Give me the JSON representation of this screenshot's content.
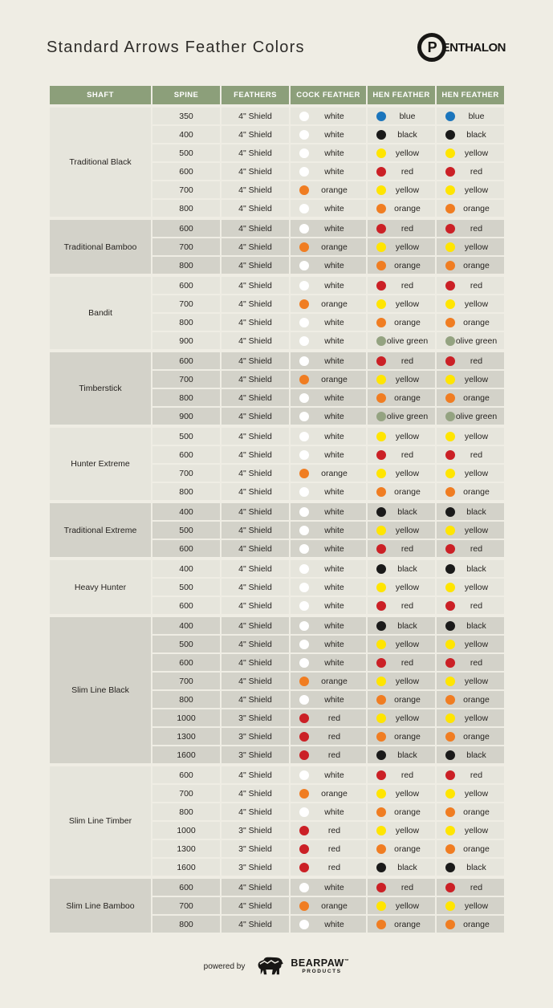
{
  "title": "Standard Arrows Feather Colors",
  "brand": {
    "circle_letter": "P",
    "rest": "ENTHALON"
  },
  "palette": {
    "white": "#ffffff",
    "blue": "#1b75bc",
    "black": "#1a1a1a",
    "yellow": "#ffe500",
    "red": "#cb2026",
    "orange": "#f07d22",
    "olive green": "#94a381",
    "header_green": "#8c9f7a",
    "group_light": "#e6e5dc",
    "group_dark": "#d3d2c9",
    "page_background": "#efede4"
  },
  "table": {
    "headers": [
      "SHAFT",
      "SPINE",
      "FEATHERS",
      "COCK FEATHER",
      "HEN FEATHER",
      "HEN FEATHER"
    ],
    "groups": [
      {
        "shaft": "Traditional Black",
        "rows": [
          {
            "spine": "350",
            "feathers": "4\" Shield",
            "cock": "white",
            "hen1": "blue",
            "hen2": "blue"
          },
          {
            "spine": "400",
            "feathers": "4\" Shield",
            "cock": "white",
            "hen1": "black",
            "hen2": "black"
          },
          {
            "spine": "500",
            "feathers": "4\" Shield",
            "cock": "white",
            "hen1": "yellow",
            "hen2": "yellow"
          },
          {
            "spine": "600",
            "feathers": "4\" Shield",
            "cock": "white",
            "hen1": "red",
            "hen2": "red"
          },
          {
            "spine": "700",
            "feathers": "4\" Shield",
            "cock": "orange",
            "hen1": "yellow",
            "hen2": "yellow"
          },
          {
            "spine": "800",
            "feathers": "4\" Shield",
            "cock": "white",
            "hen1": "orange",
            "hen2": "orange"
          }
        ]
      },
      {
        "shaft": "Traditional Bamboo",
        "rows": [
          {
            "spine": "600",
            "feathers": "4\" Shield",
            "cock": "white",
            "hen1": "red",
            "hen2": "red"
          },
          {
            "spine": "700",
            "feathers": "4\" Shield",
            "cock": "orange",
            "hen1": "yellow",
            "hen2": "yellow"
          },
          {
            "spine": "800",
            "feathers": "4\" Shield",
            "cock": "white",
            "hen1": "orange",
            "hen2": "orange"
          }
        ]
      },
      {
        "shaft": "Bandit",
        "rows": [
          {
            "spine": "600",
            "feathers": "4\" Shield",
            "cock": "white",
            "hen1": "red",
            "hen2": "red"
          },
          {
            "spine": "700",
            "feathers": "4\" Shield",
            "cock": "orange",
            "hen1": "yellow",
            "hen2": "yellow"
          },
          {
            "spine": "800",
            "feathers": "4\" Shield",
            "cock": "white",
            "hen1": "orange",
            "hen2": "orange"
          },
          {
            "spine": "900",
            "feathers": "4\" Shield",
            "cock": "white",
            "hen1": "olive green",
            "hen2": "olive green"
          }
        ]
      },
      {
        "shaft": "Timberstick",
        "rows": [
          {
            "spine": "600",
            "feathers": "4\" Shield",
            "cock": "white",
            "hen1": "red",
            "hen2": "red"
          },
          {
            "spine": "700",
            "feathers": "4\" Shield",
            "cock": "orange",
            "hen1": "yellow",
            "hen2": "yellow"
          },
          {
            "spine": "800",
            "feathers": "4\" Shield",
            "cock": "white",
            "hen1": "orange",
            "hen2": "orange"
          },
          {
            "spine": "900",
            "feathers": "4\" Shield",
            "cock": "white",
            "hen1": "olive green",
            "hen2": "olive green"
          }
        ]
      },
      {
        "shaft": "Hunter Extreme",
        "rows": [
          {
            "spine": "500",
            "feathers": "4\" Shield",
            "cock": "white",
            "hen1": "yellow",
            "hen2": "yellow"
          },
          {
            "spine": "600",
            "feathers": "4\" Shield",
            "cock": "white",
            "hen1": "red",
            "hen2": "red"
          },
          {
            "spine": "700",
            "feathers": "4\" Shield",
            "cock": "orange",
            "hen1": "yellow",
            "hen2": "yellow"
          },
          {
            "spine": "800",
            "feathers": "4\" Shield",
            "cock": "white",
            "hen1": "orange",
            "hen2": "orange"
          }
        ]
      },
      {
        "shaft": "Traditional Extreme",
        "rows": [
          {
            "spine": "400",
            "feathers": "4\" Shield",
            "cock": "white",
            "hen1": "black",
            "hen2": "black"
          },
          {
            "spine": "500",
            "feathers": "4\" Shield",
            "cock": "white",
            "hen1": "yellow",
            "hen2": "yellow"
          },
          {
            "spine": "600",
            "feathers": "4\" Shield",
            "cock": "white",
            "hen1": "red",
            "hen2": "red"
          }
        ]
      },
      {
        "shaft": "Heavy Hunter",
        "rows": [
          {
            "spine": "400",
            "feathers": "4\" Shield",
            "cock": "white",
            "hen1": "black",
            "hen2": "black"
          },
          {
            "spine": "500",
            "feathers": "4\" Shield",
            "cock": "white",
            "hen1": "yellow",
            "hen2": "yellow"
          },
          {
            "spine": "600",
            "feathers": "4\" Shield",
            "cock": "white",
            "hen1": "red",
            "hen2": "red"
          }
        ]
      },
      {
        "shaft": "Slim Line Black",
        "rows": [
          {
            "spine": "400",
            "feathers": "4\" Shield",
            "cock": "white",
            "hen1": "black",
            "hen2": "black"
          },
          {
            "spine": "500",
            "feathers": "4\" Shield",
            "cock": "white",
            "hen1": "yellow",
            "hen2": "yellow"
          },
          {
            "spine": "600",
            "feathers": "4\" Shield",
            "cock": "white",
            "hen1": "red",
            "hen2": "red"
          },
          {
            "spine": "700",
            "feathers": "4\" Shield",
            "cock": "orange",
            "hen1": "yellow",
            "hen2": "yellow"
          },
          {
            "spine": "800",
            "feathers": "4\" Shield",
            "cock": "white",
            "hen1": "orange",
            "hen2": "orange"
          },
          {
            "spine": "1000",
            "feathers": "3\" Shield",
            "cock": "red",
            "hen1": "yellow",
            "hen2": "yellow"
          },
          {
            "spine": "1300",
            "feathers": "3\" Shield",
            "cock": "red",
            "hen1": "orange",
            "hen2": "orange"
          },
          {
            "spine": "1600",
            "feathers": "3\" Shield",
            "cock": "red",
            "hen1": "black",
            "hen2": "black"
          }
        ]
      },
      {
        "shaft": "Slim Line Timber",
        "rows": [
          {
            "spine": "600",
            "feathers": "4\" Shield",
            "cock": "white",
            "hen1": "red",
            "hen2": "red"
          },
          {
            "spine": "700",
            "feathers": "4\" Shield",
            "cock": "orange",
            "hen1": "yellow",
            "hen2": "yellow"
          },
          {
            "spine": "800",
            "feathers": "4\" Shield",
            "cock": "white",
            "hen1": "orange",
            "hen2": "orange"
          },
          {
            "spine": "1000",
            "feathers": "3\" Shield",
            "cock": "red",
            "hen1": "yellow",
            "hen2": "yellow"
          },
          {
            "spine": "1300",
            "feathers": "3\" Shield",
            "cock": "red",
            "hen1": "orange",
            "hen2": "orange"
          },
          {
            "spine": "1600",
            "feathers": "3\" Shield",
            "cock": "red",
            "hen1": "black",
            "hen2": "black"
          }
        ]
      },
      {
        "shaft": "Slim Line Bamboo",
        "rows": [
          {
            "spine": "600",
            "feathers": "4\" Shield",
            "cock": "white",
            "hen1": "red",
            "hen2": "red"
          },
          {
            "spine": "700",
            "feathers": "4\" Shield",
            "cock": "orange",
            "hen1": "yellow",
            "hen2": "yellow"
          },
          {
            "spine": "800",
            "feathers": "4\" Shield",
            "cock": "white",
            "hen1": "orange",
            "hen2": "orange"
          }
        ]
      }
    ]
  },
  "footer": {
    "powered_by": "powered by",
    "brand_name": "BEARPAW",
    "brand_tm": "™",
    "brand_sub": "PRODUCTS"
  }
}
